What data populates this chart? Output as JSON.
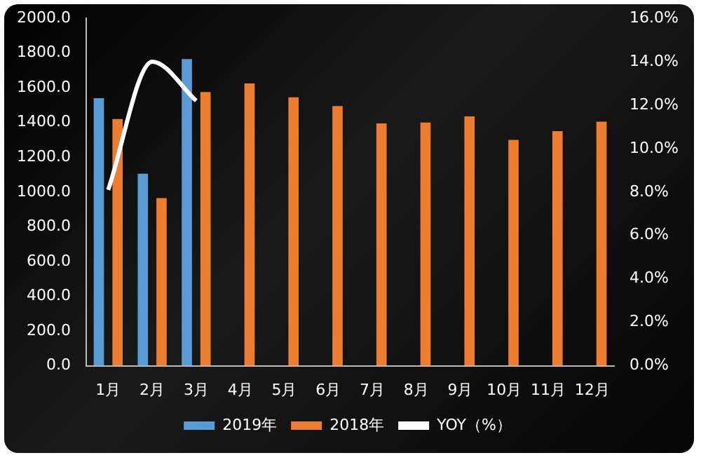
{
  "chart_data": {
    "type": "bar",
    "categories": [
      "1月",
      "2月",
      "3月",
      "4月",
      "5月",
      "6月",
      "7月",
      "8月",
      "9月",
      "10月",
      "11月",
      "12月"
    ],
    "series": [
      {
        "name": "2019年",
        "color": "#5b9bd5",
        "values": [
          1540,
          1105,
          1765,
          null,
          null,
          null,
          null,
          null,
          null,
          null,
          null,
          null
        ]
      },
      {
        "name": "2018年",
        "color": "#ed7d31",
        "values": [
          1420,
          965,
          1575,
          1625,
          1545,
          1495,
          1395,
          1400,
          1435,
          1300,
          1350,
          1405
        ]
      },
      {
        "name": "YOY（%）",
        "type": "line",
        "axis": "y2",
        "color": "#ffffff",
        "values": [
          8.1,
          14.0,
          12.2,
          null,
          null,
          null,
          null,
          null,
          null,
          null,
          null,
          null
        ]
      }
    ],
    "ylim": [
      0,
      2000
    ],
    "yticks": [
      {
        "value": 0,
        "label": "0.0"
      },
      {
        "value": 200,
        "label": "200.0"
      },
      {
        "value": 400,
        "label": "400.0"
      },
      {
        "value": 600,
        "label": "600.0"
      },
      {
        "value": 800,
        "label": "800.0"
      },
      {
        "value": 1000,
        "label": "1000.0"
      },
      {
        "value": 1200,
        "label": "1200.0"
      },
      {
        "value": 1400,
        "label": "1400.0"
      },
      {
        "value": 1600,
        "label": "1600.0"
      },
      {
        "value": 1800,
        "label": "1800.0"
      },
      {
        "value": 2000,
        "label": "2000.0"
      }
    ],
    "y2lim": [
      0,
      16
    ],
    "y2ticks": [
      {
        "value": 0,
        "label": "0.0%"
      },
      {
        "value": 2,
        "label": "2.0%"
      },
      {
        "value": 4,
        "label": "4.0%"
      },
      {
        "value": 6,
        "label": "6.0%"
      },
      {
        "value": 8,
        "label": "8.0%"
      },
      {
        "value": 10,
        "label": "10.0%"
      },
      {
        "value": 12,
        "label": "12.0%"
      },
      {
        "value": 14,
        "label": "14.0%"
      },
      {
        "value": 16,
        "label": "16.0%"
      }
    ],
    "grid": false,
    "legend": "bottom",
    "marker": "none"
  }
}
